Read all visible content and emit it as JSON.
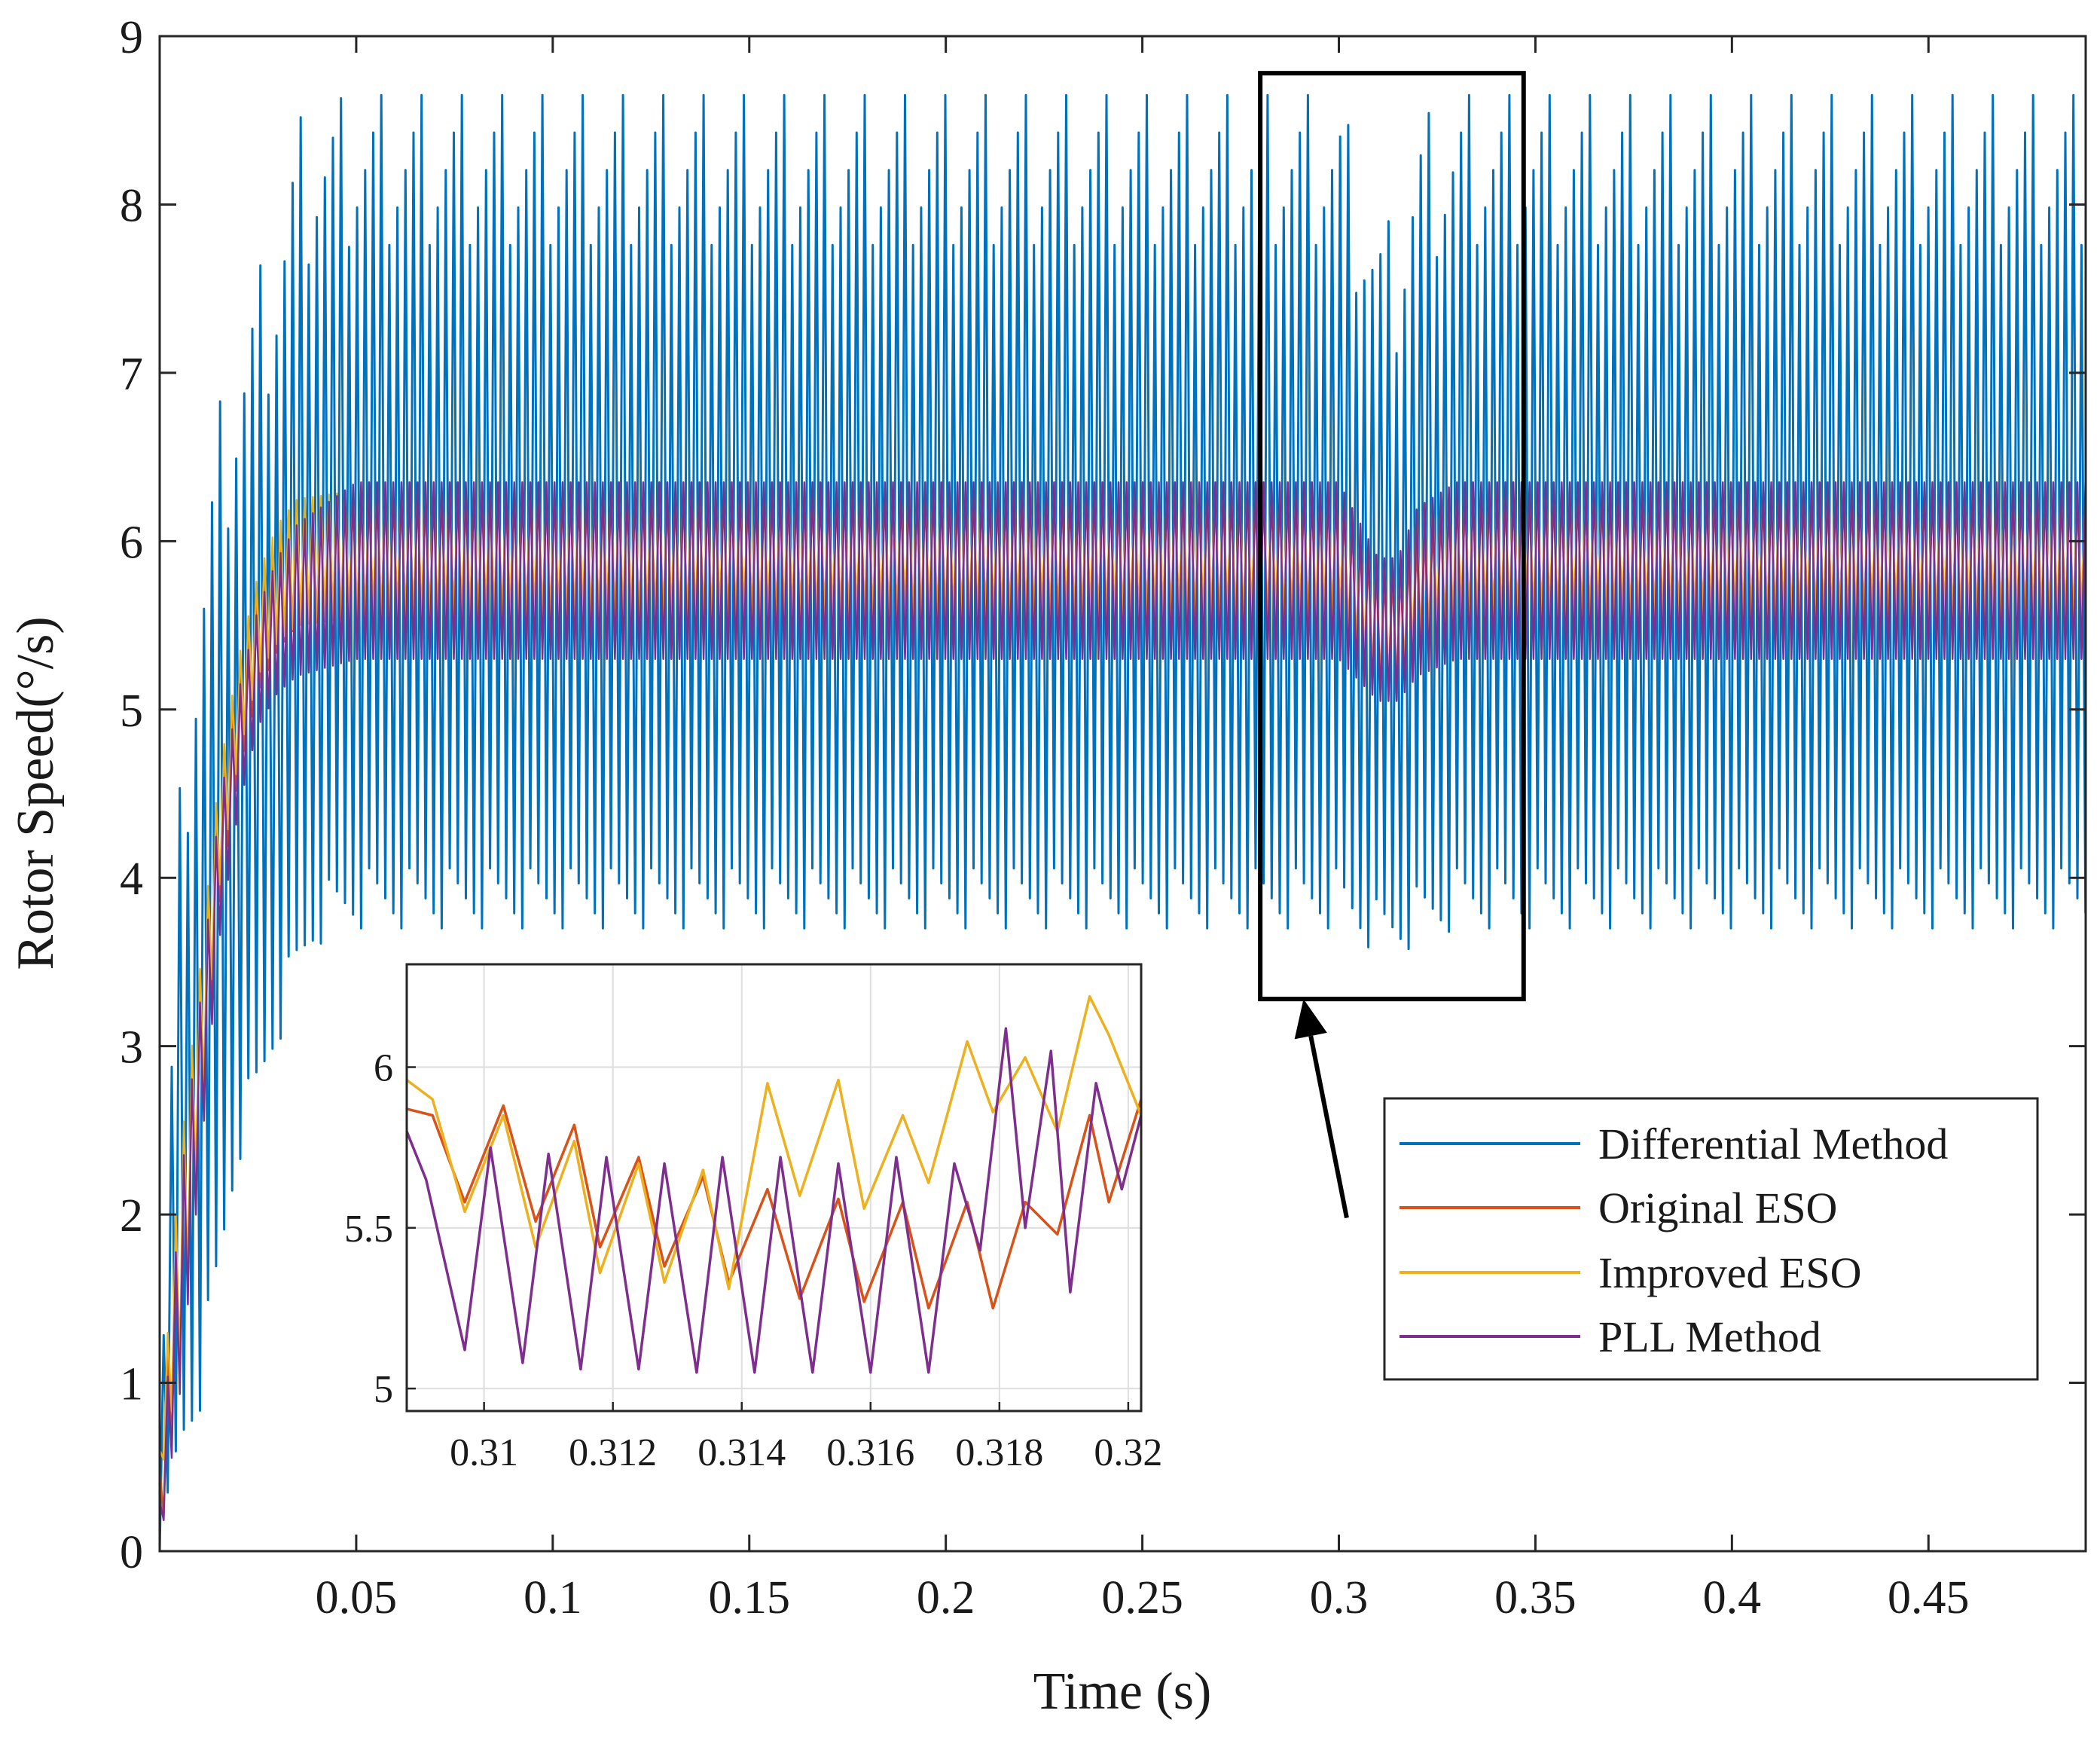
{
  "chart_data": {
    "type": "line",
    "xlabel": "Time (s)",
    "ylabel": "Rotor Speed(°/s)",
    "xlim": [
      0.0,
      0.49
    ],
    "ylim": [
      0,
      9
    ],
    "xticks": [
      0.05,
      0.1,
      0.15,
      0.2,
      0.25,
      0.3,
      0.35,
      0.4,
      0.45
    ],
    "xtick_labels": [
      "0.05",
      "0.1",
      "0.15",
      "0.2",
      "0.25",
      "0.3",
      "0.35",
      "0.4",
      "0.45"
    ],
    "yticks": [
      0,
      1,
      2,
      3,
      4,
      5,
      6,
      7,
      8,
      9
    ],
    "ytick_labels": [
      "0",
      "1",
      "2",
      "3",
      "4",
      "5",
      "6",
      "7",
      "8",
      "9"
    ],
    "grid": false,
    "legend_position": "lower-right",
    "series": [
      {
        "name": "Differential Method",
        "color": "#0072BD",
        "envelope": {
          "t": [
            0.0,
            0.005,
            0.01,
            0.015,
            0.02,
            0.025,
            0.03,
            0.035,
            0.04,
            0.05,
            0.1,
            0.2,
            0.29,
            0.3,
            0.31,
            0.315,
            0.32,
            0.33,
            0.4,
            0.49
          ],
          "min": [
            0.0,
            0.5,
            0.8,
            1.5,
            2.3,
            2.6,
            3.0,
            3.3,
            3.6,
            3.7,
            3.7,
            3.7,
            3.7,
            3.7,
            3.55,
            3.55,
            3.6,
            3.7,
            3.7,
            3.7
          ],
          "max": [
            0.6,
            4.5,
            5.8,
            6.8,
            7.2,
            7.6,
            7.9,
            8.5,
            8.6,
            8.65,
            8.65,
            8.65,
            8.65,
            8.65,
            7.9,
            7.9,
            8.5,
            8.65,
            8.65,
            8.65
          ]
        }
      },
      {
        "name": "Original ESO",
        "color": "#D95319",
        "envelope": {
          "t": [
            0.0,
            0.005,
            0.01,
            0.015,
            0.02,
            0.025,
            0.03,
            0.035,
            0.05,
            0.3,
            0.31,
            0.315,
            0.32,
            0.33,
            0.49
          ],
          "min": [
            0.0,
            1.0,
            2.3,
            3.8,
            4.6,
            5.1,
            5.35,
            5.5,
            5.55,
            5.55,
            5.1,
            5.1,
            5.3,
            5.55,
            5.55
          ],
          "max": [
            0.5,
            2.2,
            3.3,
            4.5,
            5.2,
            5.7,
            6.0,
            6.2,
            6.25,
            6.25,
            5.8,
            5.8,
            6.0,
            6.25,
            6.25
          ]
        }
      },
      {
        "name": "Improved ESO",
        "color": "#EDB120",
        "envelope": {
          "t": [
            0.0,
            0.005,
            0.01,
            0.015,
            0.02,
            0.025,
            0.03,
            0.035,
            0.05,
            0.3,
            0.31,
            0.315,
            0.32,
            0.33,
            0.49
          ],
          "min": [
            0.4,
            1.1,
            2.4,
            3.9,
            4.7,
            5.2,
            5.4,
            5.5,
            5.55,
            5.55,
            5.15,
            5.15,
            5.4,
            5.55,
            5.55
          ],
          "max": [
            0.6,
            2.3,
            3.4,
            4.6,
            5.3,
            5.8,
            6.1,
            6.25,
            6.3,
            6.3,
            5.9,
            5.85,
            6.2,
            6.3,
            6.3
          ]
        }
      },
      {
        "name": "PLL Method",
        "color": "#7E2F8E",
        "envelope": {
          "t": [
            0.0,
            0.005,
            0.01,
            0.015,
            0.02,
            0.025,
            0.03,
            0.035,
            0.05,
            0.3,
            0.31,
            0.315,
            0.32,
            0.33,
            0.49
          ],
          "min": [
            0.0,
            0.9,
            2.2,
            3.6,
            4.4,
            4.9,
            5.1,
            5.2,
            5.3,
            5.3,
            5.05,
            5.05,
            5.2,
            5.3,
            5.3
          ],
          "max": [
            0.3,
            2.1,
            3.2,
            4.4,
            5.1,
            5.6,
            5.9,
            6.1,
            6.35,
            6.35,
            5.9,
            5.9,
            6.2,
            6.35,
            6.35
          ]
        }
      }
    ],
    "zoom_box": {
      "xlim": [
        0.28,
        0.347
      ],
      "ylim": [
        3.28,
        8.78
      ]
    },
    "inset": {
      "xlim": [
        0.3088,
        0.3202
      ],
      "ylim": [
        4.93,
        6.32
      ],
      "xticks": [
        0.31,
        0.312,
        0.314,
        0.316,
        0.318,
        0.32
      ],
      "xtick_labels": [
        "0.31",
        "0.312",
        "0.314",
        "0.316",
        "0.318",
        "0.32"
      ],
      "yticks": [
        5,
        5.5,
        6
      ],
      "ytick_labels": [
        "5",
        "5.5",
        "6"
      ],
      "grid": true,
      "series": [
        {
          "name": "Original ESO",
          "x": [
            0.3088,
            0.3092,
            0.3097,
            0.3103,
            0.3108,
            0.3114,
            0.3118,
            0.3124,
            0.3128,
            0.3134,
            0.3138,
            0.3144,
            0.3149,
            0.3155,
            0.3159,
            0.3165,
            0.3169,
            0.3175,
            0.3179,
            0.3184,
            0.3189,
            0.3194,
            0.3197,
            0.3202
          ],
          "values": [
            5.87,
            5.85,
            5.58,
            5.88,
            5.52,
            5.82,
            5.44,
            5.72,
            5.38,
            5.66,
            5.33,
            5.62,
            5.28,
            5.59,
            5.27,
            5.58,
            5.25,
            5.58,
            5.25,
            5.58,
            5.48,
            5.85,
            5.58,
            5.9
          ]
        },
        {
          "name": "Improved ESO",
          "x": [
            0.3088,
            0.3092,
            0.3097,
            0.3103,
            0.3108,
            0.3114,
            0.3118,
            0.3124,
            0.3128,
            0.3134,
            0.3138,
            0.3144,
            0.3149,
            0.3155,
            0.3159,
            0.3165,
            0.3169,
            0.3175,
            0.3179,
            0.3184,
            0.3189,
            0.3194,
            0.3197,
            0.3202
          ],
          "values": [
            5.96,
            5.9,
            5.55,
            5.85,
            5.44,
            5.77,
            5.36,
            5.7,
            5.33,
            5.68,
            5.31,
            5.95,
            5.6,
            5.96,
            5.56,
            5.85,
            5.64,
            6.08,
            5.86,
            6.03,
            5.8,
            6.22,
            6.1,
            5.85
          ]
        },
        {
          "name": "PLL Method",
          "x": [
            0.3088,
            0.3091,
            0.3097,
            0.3101,
            0.3106,
            0.311,
            0.3115,
            0.3119,
            0.3124,
            0.3128,
            0.3133,
            0.3137,
            0.3142,
            0.3146,
            0.3151,
            0.3155,
            0.316,
            0.3164,
            0.3169,
            0.3173,
            0.3177,
            0.3181,
            0.3184,
            0.3188,
            0.3191,
            0.3195,
            0.3199,
            0.3202
          ],
          "values": [
            5.8,
            5.65,
            5.12,
            5.75,
            5.08,
            5.73,
            5.06,
            5.72,
            5.06,
            5.7,
            5.05,
            5.72,
            5.05,
            5.72,
            5.05,
            5.7,
            5.05,
            5.72,
            5.05,
            5.7,
            5.43,
            6.12,
            5.5,
            6.05,
            5.3,
            5.95,
            5.62,
            5.85
          ]
        }
      ]
    },
    "arrow": {
      "from": [
        0.302,
        1.98
      ],
      "to": [
        0.291,
        3.28
      ]
    }
  }
}
